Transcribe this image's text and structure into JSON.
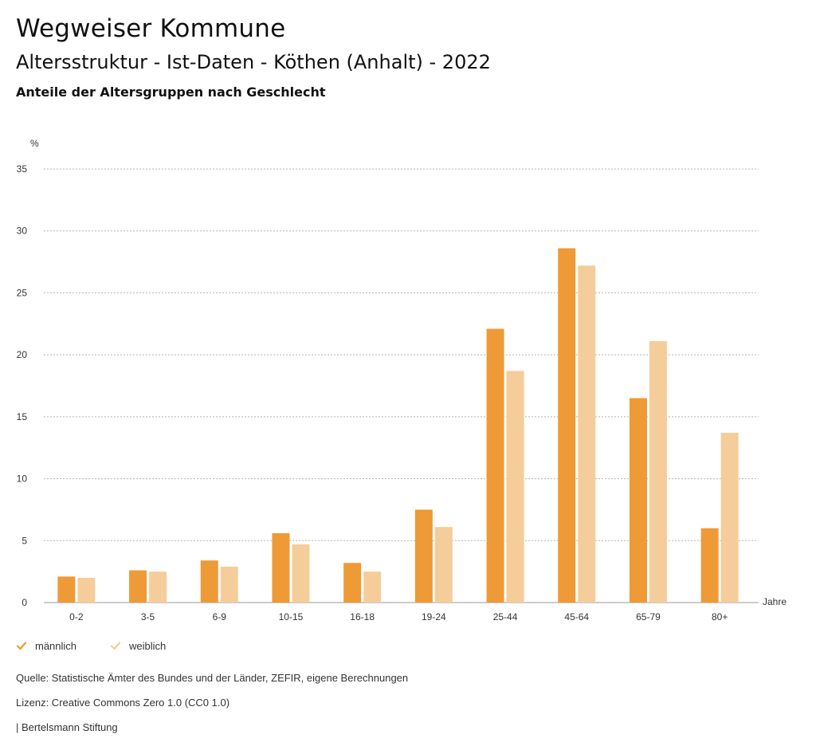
{
  "header": {
    "title": "Wegweiser Kommune",
    "subtitle": "Altersstruktur - Ist-Daten - Köthen (Anhalt) - 2022",
    "chart_title": "Anteile der Altersgruppen nach Geschlecht"
  },
  "chart_data": {
    "type": "bar",
    "ylabel": "%",
    "xlabel": "Jahre",
    "ylim": [
      0,
      35
    ],
    "yticks": [
      0,
      5,
      10,
      15,
      20,
      25,
      30,
      35
    ],
    "grid": true,
    "legend_position": "bottom-left",
    "categories": [
      "0-2",
      "3-5",
      "6-9",
      "10-15",
      "16-18",
      "19-24",
      "25-44",
      "45-64",
      "65-79",
      "80+"
    ],
    "series": [
      {
        "name": "männlich",
        "color": "#ee9a37",
        "values": [
          2.1,
          2.6,
          3.4,
          5.6,
          3.2,
          7.5,
          22.1,
          28.6,
          16.5,
          6.0
        ]
      },
      {
        "name": "weiblich",
        "color": "#f4cd9b",
        "values": [
          2.0,
          2.5,
          2.9,
          4.7,
          2.5,
          6.1,
          18.7,
          27.2,
          21.1,
          13.7
        ]
      }
    ]
  },
  "legend": {
    "male": "männlich",
    "female": "weiblich"
  },
  "footer": {
    "source": "Quelle: Statistische Ämter des Bundes und der Länder, ZEFIR, eigene Berechnungen",
    "license": "Lizenz: Creative Commons Zero 1.0 (CC0 1.0)",
    "publisher": "| Bertelsmann Stiftung"
  }
}
